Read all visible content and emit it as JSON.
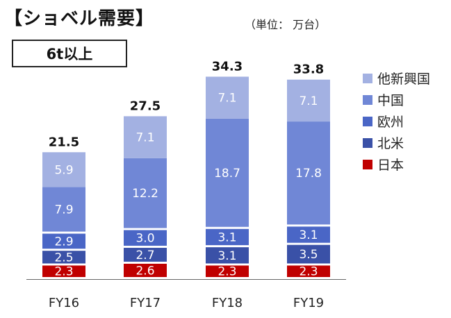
{
  "header": {
    "title": "【ショベル需要】",
    "unit": "（単位： 万台）",
    "subtitle": "6t以上"
  },
  "chart_data": {
    "type": "bar",
    "stacked": true,
    "categories": [
      "FY16",
      "FY17",
      "FY18",
      "FY19"
    ],
    "totals": [
      "21.5",
      "27.5",
      "34.3",
      "33.8"
    ],
    "series": [
      {
        "name": "日本",
        "color": "#c00000",
        "values": [
          2.3,
          2.6,
          2.3,
          2.3
        ]
      },
      {
        "name": "北米",
        "color": "#3a51a7",
        "values": [
          2.5,
          2.7,
          3.1,
          3.5
        ]
      },
      {
        "name": "欧州",
        "color": "#4a66c6",
        "values": [
          2.9,
          3.0,
          3.1,
          3.1
        ]
      },
      {
        "name": "中国",
        "color": "#7087d6",
        "values": [
          7.9,
          12.2,
          18.7,
          17.8
        ]
      },
      {
        "name": "他新興国",
        "color": "#a3b1e2",
        "values": [
          5.9,
          7.1,
          7.1,
          7.1
        ]
      }
    ],
    "legend_order": [
      "他新興国",
      "中国",
      "欧州",
      "北米",
      "日本"
    ],
    "legend_position": "right"
  }
}
